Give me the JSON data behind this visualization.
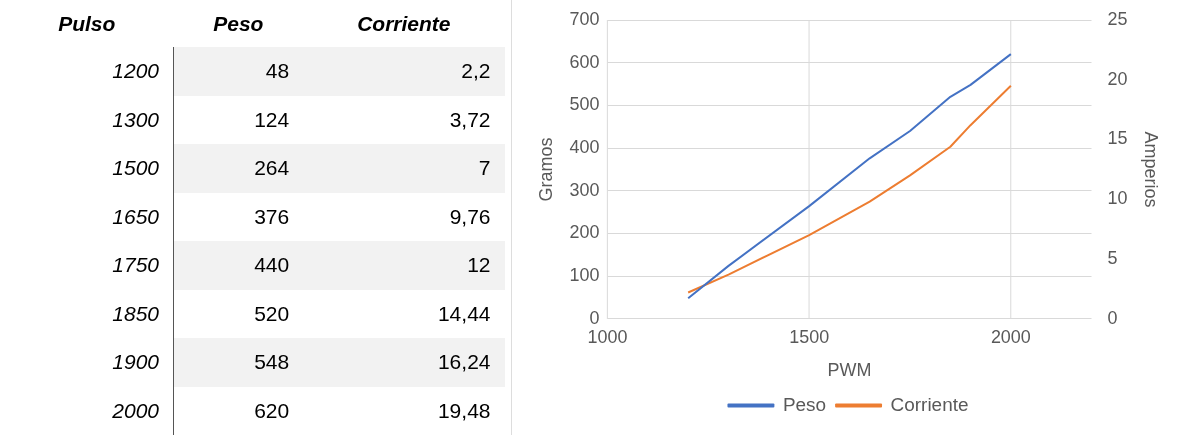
{
  "chart_data": [
    {
      "type": "other",
      "annotations": [
        "Pulso",
        "Peso",
        "Corriente",
        "1200",
        "48",
        "2,2",
        "1300",
        "124",
        "3,72",
        "1500",
        "264",
        "7",
        "1650",
        "376",
        "9,76",
        "1750",
        "440",
        "12",
        "1850",
        "520",
        "14,44",
        "1900",
        "548",
        "16,24",
        "2000",
        "620",
        "19,48"
      ]
    },
    {
      "type": "line",
      "xlabel": "PWM",
      "ylabel": "Gramos",
      "y2label": "Amperios",
      "x": [
        1200,
        1300,
        1500,
        1650,
        1750,
        1850,
        1900,
        2000
      ],
      "series": [
        {
          "name": "Peso",
          "color": "#4472c4",
          "values": [
            48,
            124,
            264,
            376,
            440,
            520,
            548,
            620
          ]
        },
        {
          "name": "Corriente",
          "color": "#ed7d31",
          "axis": "y2",
          "values": [
            2.2,
            3.7,
            7,
            9.8,
            12,
            14.4,
            16.2,
            19.5
          ]
        }
      ],
      "xlim": [
        1000,
        2200
      ],
      "xticks": [
        1000,
        1500,
        2000
      ],
      "ylim": [
        0,
        700
      ],
      "yticks": [
        0,
        100,
        200,
        300,
        400,
        500,
        600,
        700
      ],
      "y2lim": [
        0,
        25
      ],
      "y2ticks": [
        0,
        5,
        10,
        15,
        20,
        25
      ],
      "grid": true,
      "legend": "bottom",
      "marker": "none",
      "line_style": "solid"
    }
  ]
}
